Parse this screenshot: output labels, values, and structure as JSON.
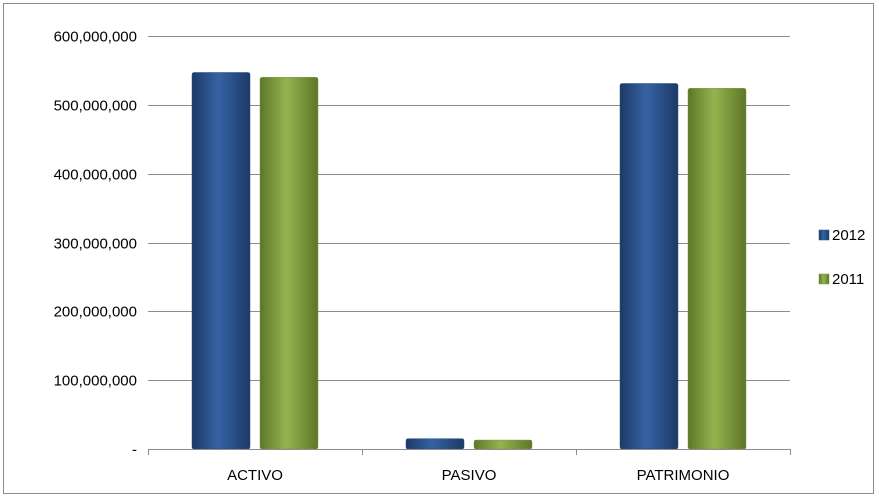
{
  "chart_data": {
    "type": "bar",
    "title": "",
    "xlabel": "",
    "ylabel": "",
    "categories": [
      "ACTIVO",
      "PASIVO",
      "PATRIMONIO"
    ],
    "series": [
      {
        "name": "2012",
        "values": [
          547000000,
          15000000,
          531000000
        ],
        "color": "#2a4f86"
      },
      {
        "name": "2011",
        "values": [
          540000000,
          13000000,
          524000000
        ],
        "color": "#7d9a3c"
      }
    ],
    "ylim": [
      0,
      600000000
    ],
    "yticks": [
      0,
      100000000,
      200000000,
      300000000,
      400000000,
      500000000,
      600000000
    ],
    "ytick_labels": [
      "-",
      "100,000,000",
      "200,000,000",
      "300,000,000",
      "400,000,000",
      "500,000,000",
      "600,000,000"
    ],
    "grid": true,
    "legend_position": "right"
  }
}
